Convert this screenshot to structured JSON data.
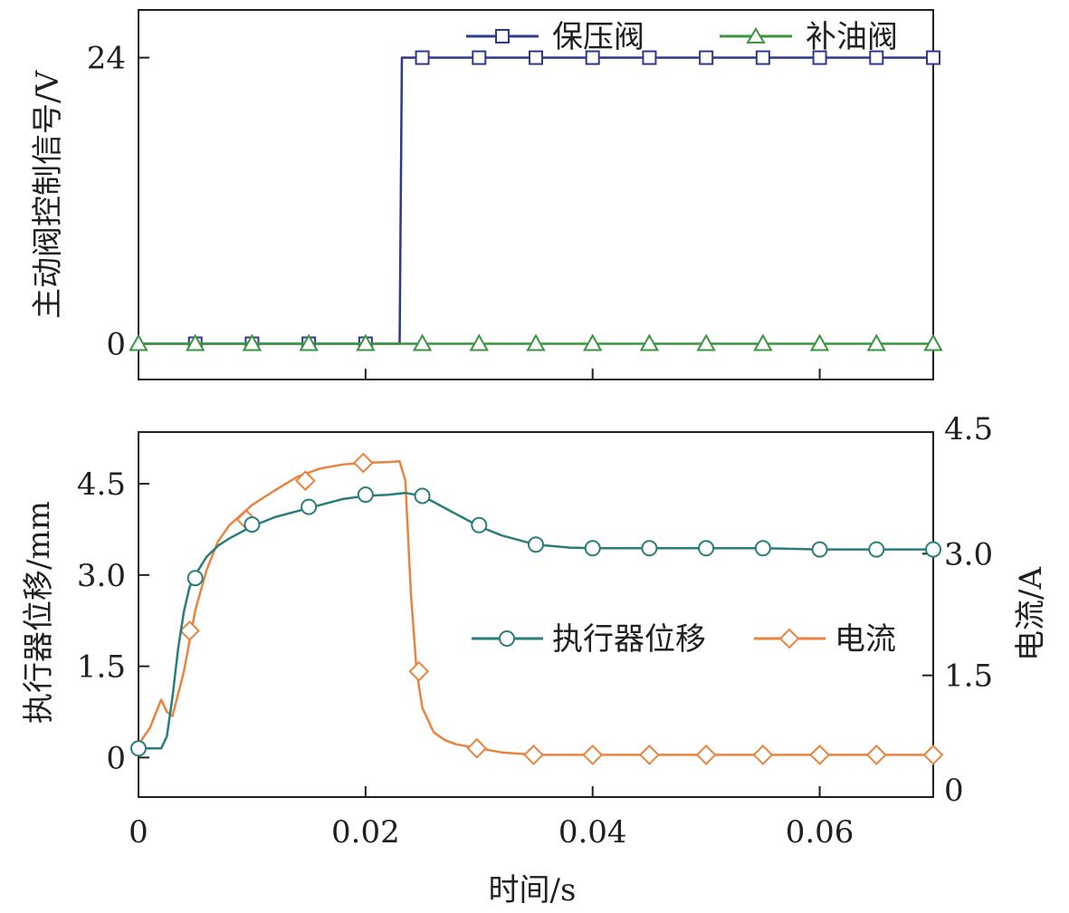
{
  "chart_data": [
    {
      "type": "line",
      "ylabel": "主动阀控制信号/V",
      "xlim": [
        0,
        0.07
      ],
      "ylim": [
        -3,
        28
      ],
      "x_ticks": [
        0,
        0.02,
        0.04,
        0.06
      ],
      "y_ticks": [
        {
          "value": 0,
          "label": "0"
        },
        {
          "value": 24,
          "label": "24"
        }
      ],
      "legend_position": "top-right",
      "grid": false,
      "series": [
        {
          "name": "保压阀",
          "color": "#2e3a87",
          "marker": "square",
          "x": [
            0,
            0.023,
            0.0232,
            0.0234,
            0.07
          ],
          "y": [
            0,
            0,
            24,
            24,
            24
          ],
          "marker_x": [
            0.005,
            0.01,
            0.015,
            0.02,
            0.025,
            0.03,
            0.035,
            0.04,
            0.045,
            0.05,
            0.055,
            0.06,
            0.065,
            0.07
          ],
          "marker_y": [
            0,
            0,
            0,
            0,
            24,
            24,
            24,
            24,
            24,
            24,
            24,
            24,
            24,
            24
          ]
        },
        {
          "name": "补油阀",
          "color": "#3a9440",
          "marker": "triangle",
          "x": [
            0,
            0.07
          ],
          "y": [
            0,
            0
          ],
          "marker_x": [
            0,
            0.005,
            0.01,
            0.015,
            0.02,
            0.025,
            0.03,
            0.035,
            0.04,
            0.045,
            0.05,
            0.055,
            0.06,
            0.065,
            0.07
          ],
          "marker_y": [
            0,
            0,
            0,
            0,
            0,
            0,
            0,
            0,
            0,
            0,
            0,
            0,
            0,
            0,
            0
          ]
        }
      ]
    },
    {
      "type": "line",
      "xlabel": "时间/s",
      "ylabel": "执行器位移/mm",
      "ylabel_right": "电流/A",
      "xlim": [
        0,
        0.07
      ],
      "ylim": [
        -0.65,
        5.35
      ],
      "ylim_right": [
        0,
        4.5
      ],
      "x_ticks": [
        {
          "value": 0,
          "label": "0"
        },
        {
          "value": 0.02,
          "label": "0.02"
        },
        {
          "value": 0.04,
          "label": "0.04"
        },
        {
          "value": 0.06,
          "label": "0.06"
        }
      ],
      "y_ticks": [
        {
          "value": 0,
          "label": "0"
        },
        {
          "value": 1.5,
          "label": "1.5"
        },
        {
          "value": 3.0,
          "label": "3.0"
        },
        {
          "value": 4.5,
          "label": "4.5"
        }
      ],
      "y_ticks_right": [
        {
          "value": 0,
          "label": "0"
        },
        {
          "value": 1.5,
          "label": "1.5"
        },
        {
          "value": 3.0,
          "label": "3.0"
        },
        {
          "value": 4.5,
          "label": "4.5"
        }
      ],
      "legend_position": "center-right",
      "grid": false,
      "series": [
        {
          "name": "执行器位移",
          "axis": "left",
          "color": "#2a7d7a",
          "marker": "circle",
          "x": [
            0,
            0.002,
            0.0025,
            0.003,
            0.0035,
            0.004,
            0.0045,
            0.005,
            0.006,
            0.007,
            0.008,
            0.009,
            0.01,
            0.012,
            0.014,
            0.016,
            0.018,
            0.02,
            0.022,
            0.0235,
            0.025,
            0.027,
            0.03,
            0.032,
            0.035,
            0.038,
            0.04,
            0.045,
            0.05,
            0.055,
            0.06,
            0.065,
            0.07
          ],
          "y": [
            0.15,
            0.15,
            0.35,
            1.0,
            1.8,
            2.4,
            2.8,
            3.0,
            3.3,
            3.48,
            3.6,
            3.7,
            3.8,
            3.95,
            4.05,
            4.15,
            4.25,
            4.3,
            4.32,
            4.35,
            4.3,
            4.1,
            3.8,
            3.65,
            3.5,
            3.45,
            3.44,
            3.44,
            3.44,
            3.44,
            3.42,
            3.42,
            3.42
          ],
          "marker_x": [
            0,
            0.005,
            0.01,
            0.015,
            0.02,
            0.025,
            0.03,
            0.035,
            0.04,
            0.045,
            0.05,
            0.055,
            0.06,
            0.065,
            0.07
          ],
          "marker_y": [
            0.15,
            2.95,
            3.83,
            4.12,
            4.32,
            4.3,
            3.82,
            3.5,
            3.44,
            3.44,
            3.44,
            3.44,
            3.42,
            3.42,
            3.42
          ]
        },
        {
          "name": "电流",
          "axis": "right",
          "color": "#e8843e",
          "marker": "diamond",
          "x": [
            0,
            0.001,
            0.002,
            0.0025,
            0.003,
            0.004,
            0.005,
            0.006,
            0.007,
            0.008,
            0.01,
            0.012,
            0.014,
            0.016,
            0.018,
            0.02,
            0.022,
            0.023,
            0.0235,
            0.024,
            0.0245,
            0.025,
            0.026,
            0.027,
            0.028,
            0.03,
            0.032,
            0.035,
            0.04,
            0.045,
            0.05,
            0.055,
            0.06,
            0.065,
            0.07
          ],
          "y": [
            0.65,
            0.85,
            1.2,
            1.05,
            1.0,
            1.55,
            2.3,
            2.8,
            3.15,
            3.35,
            3.6,
            3.78,
            3.95,
            4.05,
            4.1,
            4.12,
            4.13,
            4.14,
            3.9,
            2.5,
            1.55,
            1.1,
            0.8,
            0.7,
            0.65,
            0.6,
            0.55,
            0.52,
            0.52,
            0.52,
            0.52,
            0.52,
            0.52,
            0.52,
            0.52
          ],
          "marker_x": [
            0.0045,
            0.0095,
            0.0147,
            0.0198,
            0.0247,
            0.0298,
            0.0348,
            0.04,
            0.045,
            0.05,
            0.055,
            0.06,
            0.065,
            0.07
          ],
          "marker_y": [
            2.05,
            3.42,
            3.9,
            4.12,
            1.55,
            0.6,
            0.52,
            0.52,
            0.52,
            0.52,
            0.52,
            0.52,
            0.52,
            0.52
          ]
        }
      ]
    }
  ]
}
